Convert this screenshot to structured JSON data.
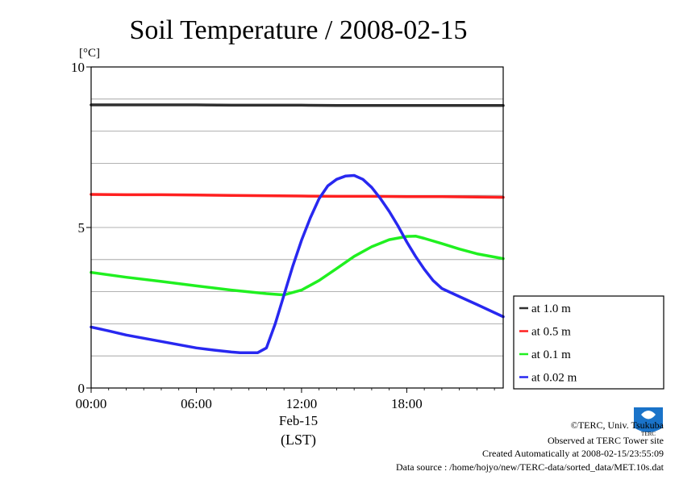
{
  "chart_data": {
    "type": "line",
    "title": "Soil Temperature / 2008-02-15",
    "yunit": "[°C]",
    "xlabel": "(LST)",
    "x_date_label": "Feb-15",
    "ylim": [
      0,
      10
    ],
    "xlim": [
      0,
      23.5
    ],
    "yticks": [
      0,
      5,
      10
    ],
    "yticklabels": [
      "0",
      "5",
      "10"
    ],
    "xticks": [
      0,
      6,
      12,
      18
    ],
    "xticklabels": [
      "00:00",
      "06:00",
      "12:00",
      "18:00"
    ],
    "grid": true,
    "legend_position": "right",
    "series": [
      {
        "name": "at 1.0 m",
        "color": "#303030",
        "x": [
          0,
          2,
          4,
          6,
          8,
          10,
          12,
          14,
          16,
          18,
          20,
          22,
          23.5
        ],
        "values": [
          8.82,
          8.82,
          8.82,
          8.82,
          8.81,
          8.81,
          8.81,
          8.8,
          8.8,
          8.8,
          8.8,
          8.8,
          8.8
        ]
      },
      {
        "name": "at 0.5 m",
        "color": "#ff2020",
        "x": [
          0,
          2,
          4,
          6,
          8,
          10,
          12,
          14,
          16,
          18,
          20,
          22,
          23.5
        ],
        "values": [
          6.03,
          6.02,
          6.02,
          6.01,
          6.0,
          5.99,
          5.98,
          5.97,
          5.97,
          5.96,
          5.96,
          5.95,
          5.94
        ]
      },
      {
        "name": "at 0.1 m",
        "color": "#20f020",
        "x": [
          0,
          2,
          4,
          6,
          8,
          10,
          11,
          12,
          13,
          14,
          15,
          16,
          17,
          18,
          18.5,
          19,
          20,
          21,
          22,
          23.5
        ],
        "values": [
          3.6,
          3.45,
          3.32,
          3.18,
          3.05,
          2.94,
          2.9,
          3.05,
          3.35,
          3.72,
          4.1,
          4.4,
          4.62,
          4.72,
          4.73,
          4.66,
          4.5,
          4.33,
          4.18,
          4.03
        ]
      },
      {
        "name": "at 0.02 m",
        "color": "#2828f0",
        "x": [
          0,
          1,
          2,
          3,
          4,
          5,
          6,
          7,
          8,
          8.5,
          9,
          9.5,
          10,
          10.5,
          11,
          11.5,
          12,
          12.5,
          13,
          13.5,
          14,
          14.5,
          15,
          15.5,
          16,
          16.5,
          17,
          17.5,
          18,
          18.5,
          19,
          19.5,
          20,
          21,
          22,
          23.5
        ],
        "values": [
          1.9,
          1.78,
          1.65,
          1.55,
          1.45,
          1.35,
          1.25,
          1.18,
          1.12,
          1.1,
          1.1,
          1.1,
          1.25,
          2.0,
          2.9,
          3.8,
          4.6,
          5.3,
          5.9,
          6.3,
          6.5,
          6.6,
          6.62,
          6.5,
          6.25,
          5.9,
          5.5,
          5.05,
          4.55,
          4.1,
          3.7,
          3.35,
          3.1,
          2.85,
          2.6,
          2.22
        ]
      }
    ]
  },
  "footer": {
    "copyright": "©TERC, Univ. Tsukuba",
    "observed": "Observed at TERC Tower site",
    "created": "Created Automatically at 2008-02-15/23:55:09",
    "source": "Data source : /home/hojyo/new/TERC-data/sorted_data/MET.10s.dat"
  },
  "logo": {
    "text": "TERC",
    "color": "#1a73c9"
  }
}
